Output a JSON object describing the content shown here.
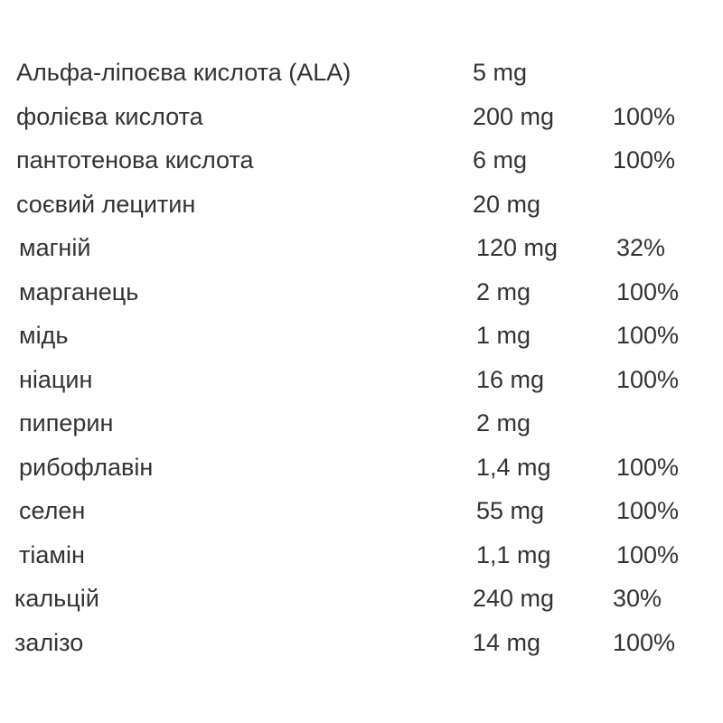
{
  "rows": [
    {
      "name": "Альфа-ліпоєва кислота (ALA)",
      "amount": "5 mg",
      "percent": ""
    },
    {
      "name": "фолієва кислота",
      "amount": "200 mg",
      "percent": "100%"
    },
    {
      "name": "пантотенова кислота",
      "amount": "6 mg",
      "percent": "100%"
    },
    {
      "name": "соєвий лецитин",
      "amount": "20 mg",
      "percent": ""
    },
    {
      "name": "магній",
      "amount": "120 mg",
      "percent": "32%"
    },
    {
      "name": "марганець",
      "amount": "2 mg",
      "percent": "100%"
    },
    {
      "name": "мідь",
      "amount": "1 mg",
      "percent": "100%"
    },
    {
      "name": "ніацин",
      "amount": "16 mg",
      "percent": "100%"
    },
    {
      "name": "пиперин",
      "amount": "2 mg",
      "percent": ""
    },
    {
      "name": "рибофлавін",
      "amount": "1,4 mg",
      "percent": "100%"
    },
    {
      "name": "селен",
      "amount": "55 mg",
      "percent": "100%"
    },
    {
      "name": "тіамін",
      "amount": "1,1 mg",
      "percent": "100%"
    },
    {
      "name": "кальцій",
      "amount": "240 mg",
      "percent": "30%"
    },
    {
      "name": "залізо",
      "amount": "14 mg",
      "percent": "100%"
    }
  ]
}
